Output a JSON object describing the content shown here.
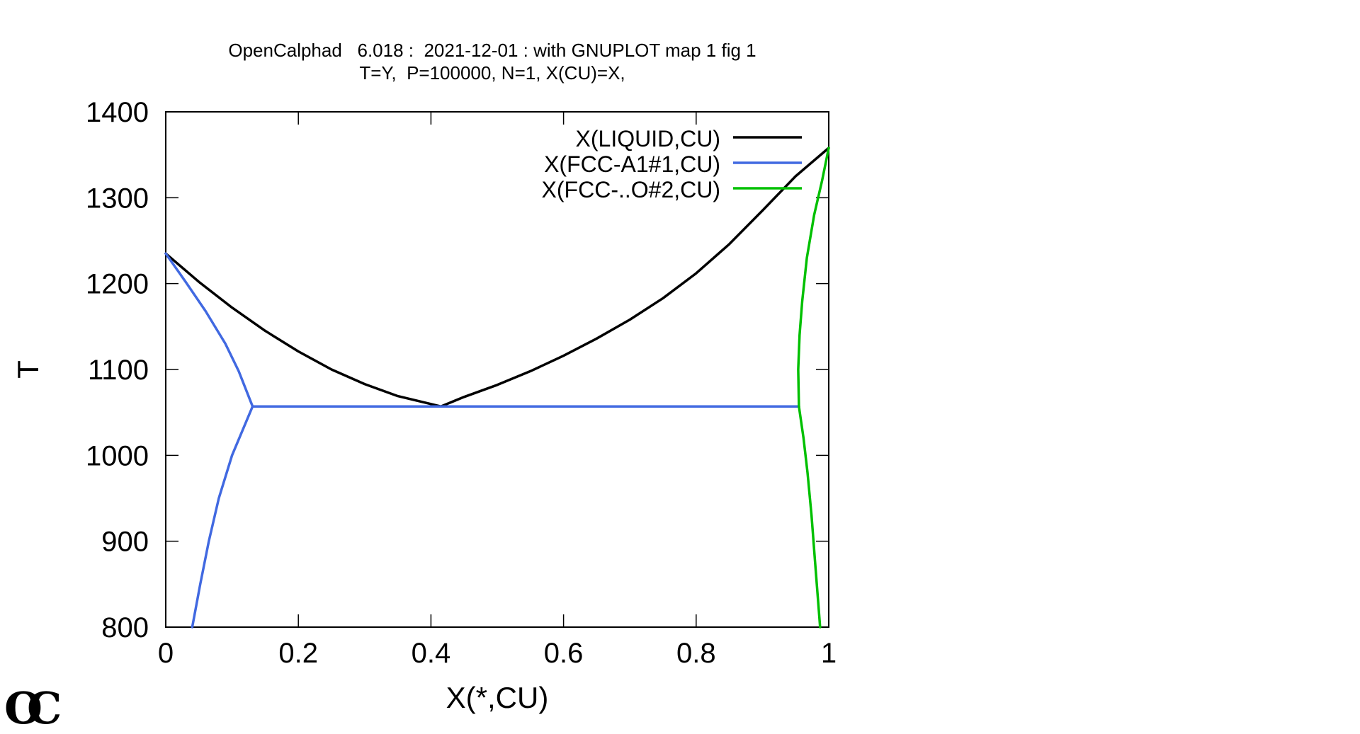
{
  "chart_data": {
    "type": "line",
    "title": "OpenCalphad   6.018 :  2021-12-01 : with GNUPLOT map 1 fig 1",
    "subtitle": "T=Y,  P=100000, N=1, X(CU)=X,",
    "xlabel": "X(*,CU)",
    "ylabel": "T",
    "xlim": [
      0,
      1
    ],
    "ylim": [
      800,
      1400
    ],
    "xticks": [
      "0",
      "0.2",
      "0.4",
      "0.6",
      "0.8",
      "1"
    ],
    "xtick_values": [
      0,
      0.2,
      0.4,
      0.6,
      0.8,
      1
    ],
    "yticks": [
      "800",
      "900",
      "1000",
      "1100",
      "1200",
      "1300",
      "1400"
    ],
    "ytick_values": [
      800,
      900,
      1000,
      1100,
      1200,
      1300,
      1400
    ],
    "legend_position": "top-right",
    "series": [
      {
        "name": "X(LIQUID,CU)",
        "color": "#000000",
        "segments": [
          [
            [
              0.0,
              1235
            ],
            [
              0.05,
              1202
            ],
            [
              0.1,
              1172
            ],
            [
              0.15,
              1145
            ],
            [
              0.2,
              1121
            ],
            [
              0.25,
              1100
            ],
            [
              0.3,
              1083
            ],
            [
              0.35,
              1069
            ],
            [
              0.415,
              1057
            ]
          ],
          [
            [
              0.415,
              1057
            ],
            [
              0.45,
              1068
            ],
            [
              0.5,
              1082
            ],
            [
              0.55,
              1098
            ],
            [
              0.6,
              1116
            ],
            [
              0.65,
              1136
            ],
            [
              0.7,
              1158
            ],
            [
              0.75,
              1183
            ],
            [
              0.8,
              1212
            ],
            [
              0.85,
              1246
            ],
            [
              0.9,
              1285
            ],
            [
              0.95,
              1325
            ],
            [
              1.0,
              1358
            ]
          ]
        ]
      },
      {
        "name": "X(FCC-A1#1,CU)",
        "color": "#4169e1",
        "segments": [
          [
            [
              0.0,
              1235
            ],
            [
              0.03,
              1202
            ],
            [
              0.06,
              1168
            ],
            [
              0.09,
              1130
            ],
            [
              0.11,
              1098
            ],
            [
              0.131,
              1057
            ]
          ],
          [
            [
              0.131,
              1057
            ],
            [
              0.1,
              1000
            ],
            [
              0.08,
              950
            ],
            [
              0.065,
              900
            ],
            [
              0.052,
              850
            ],
            [
              0.04,
              800
            ]
          ],
          [
            [
              0.131,
              1057
            ],
            [
              0.955,
              1057
            ]
          ]
        ]
      },
      {
        "name": "X(FCC-..O#2,CU)",
        "color": "#00c000",
        "segments": [
          [
            [
              1.0,
              1358
            ],
            [
              0.99,
              1320
            ],
            [
              0.978,
              1280
            ],
            [
              0.967,
              1230
            ],
            [
              0.96,
              1180
            ],
            [
              0.956,
              1140
            ],
            [
              0.954,
              1100
            ],
            [
              0.955,
              1057
            ]
          ],
          [
            [
              0.955,
              1057
            ],
            [
              0.962,
              1020
            ],
            [
              0.968,
              980
            ],
            [
              0.974,
              930
            ],
            [
              0.979,
              880
            ],
            [
              0.984,
              830
            ],
            [
              0.987,
              800
            ]
          ]
        ]
      }
    ]
  },
  "logo_text": "OC"
}
